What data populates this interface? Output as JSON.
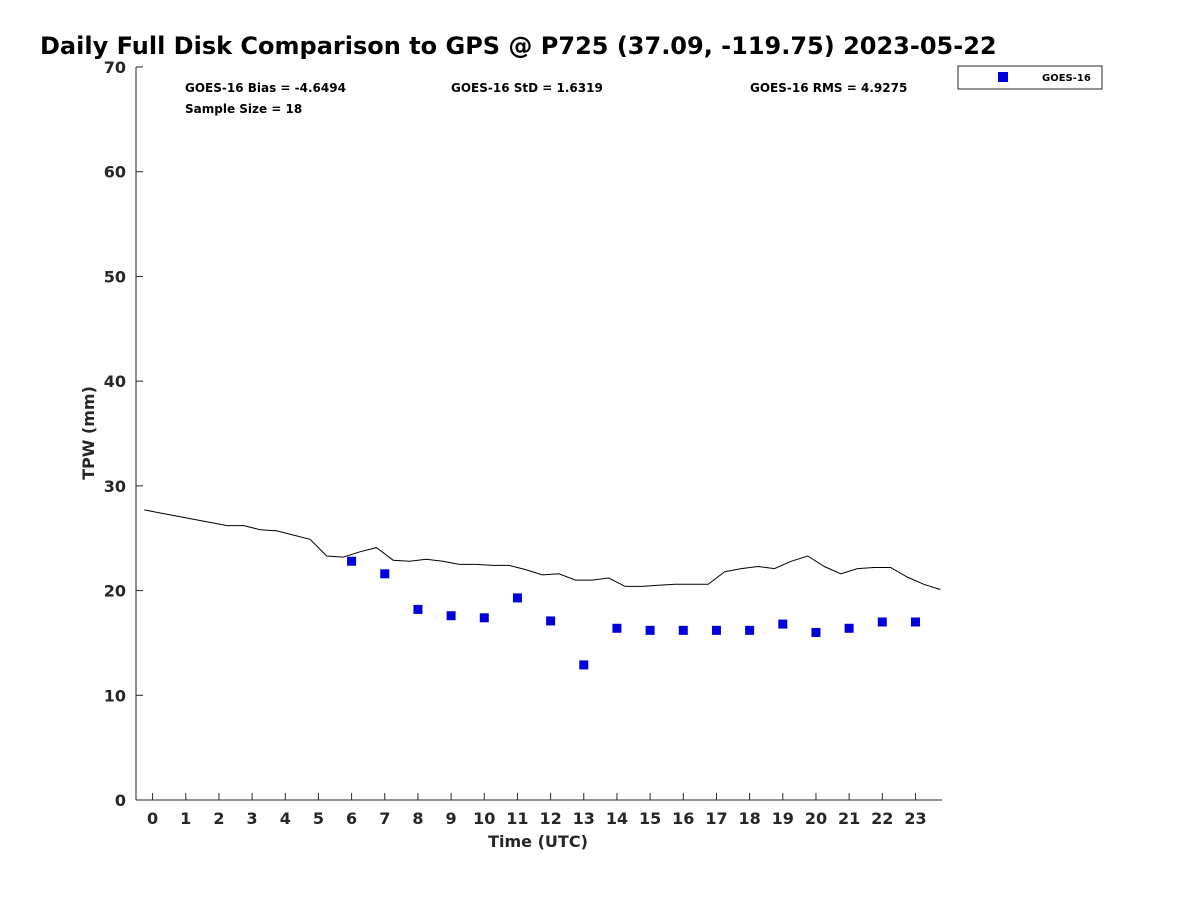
{
  "chart_data": {
    "type": "scatter",
    "title": "Daily Full Disk Comparison to GPS @ P725 (37.09, -119.75) 2023-05-22",
    "xlabel": "Time (UTC)",
    "ylabel": "TPW (mm)",
    "xlim": [
      -0.5,
      23.8
    ],
    "ylim": [
      0,
      70
    ],
    "xticks": [
      0,
      1,
      2,
      3,
      4,
      5,
      6,
      7,
      8,
      9,
      10,
      11,
      12,
      13,
      14,
      15,
      16,
      17,
      18,
      19,
      20,
      21,
      22,
      23
    ],
    "yticks": [
      0,
      10,
      20,
      30,
      40,
      50,
      60,
      70
    ],
    "grid": false,
    "legend_position": "top-right outside",
    "stats": {
      "bias": "GOES-16 Bias = -4.6494",
      "std": "GOES-16 StD = 1.6319",
      "rms": "GOES-16 RMS = 4.9275",
      "sample": "Sample Size = 18"
    },
    "series": [
      {
        "name": "GOES-16",
        "marker": "square",
        "color": "#0000dd",
        "x": [
          6,
          7,
          8,
          9,
          10,
          11,
          12,
          13,
          14,
          15,
          16,
          17,
          18,
          19,
          20,
          21,
          22,
          23
        ],
        "y": [
          22.8,
          21.6,
          18.2,
          17.6,
          17.4,
          19.3,
          17.1,
          12.9,
          16.4,
          16.2,
          16.2,
          16.2,
          16.2,
          16.8,
          16.0,
          16.4,
          17.0,
          17.0
        ]
      },
      {
        "marker": "line",
        "color": "#000000",
        "x": [
          -0.25,
          0.25,
          0.75,
          1.25,
          1.75,
          2.25,
          2.75,
          3.25,
          3.75,
          4.25,
          4.75,
          5.25,
          5.75,
          6.25,
          6.75,
          7.25,
          7.75,
          8.25,
          8.75,
          9.25,
          9.75,
          10.25,
          10.75,
          11.25,
          11.75,
          12.25,
          12.75,
          13.25,
          13.75,
          14.25,
          14.75,
          15.25,
          15.75,
          16.25,
          16.75,
          17.25,
          17.75,
          18.25,
          18.75,
          19.25,
          19.75,
          20.25,
          20.75,
          21.25,
          21.75,
          22.25,
          22.75,
          23.25,
          23.75
        ],
        "y": [
          27.7,
          27.4,
          27.1,
          26.8,
          26.5,
          26.2,
          26.2,
          25.8,
          25.7,
          25.3,
          24.9,
          23.3,
          23.2,
          23.7,
          24.1,
          22.9,
          22.8,
          23.0,
          22.8,
          22.5,
          22.5,
          22.4,
          22.4,
          22.0,
          21.5,
          21.6,
          21.0,
          21.0,
          21.2,
          20.4,
          20.4,
          20.5,
          20.6,
          20.6,
          20.6,
          21.8,
          22.1,
          22.3,
          22.1,
          22.8,
          23.3,
          22.3,
          21.6,
          22.1,
          22.2,
          22.2,
          21.3,
          20.6,
          20.1
        ]
      }
    ]
  }
}
